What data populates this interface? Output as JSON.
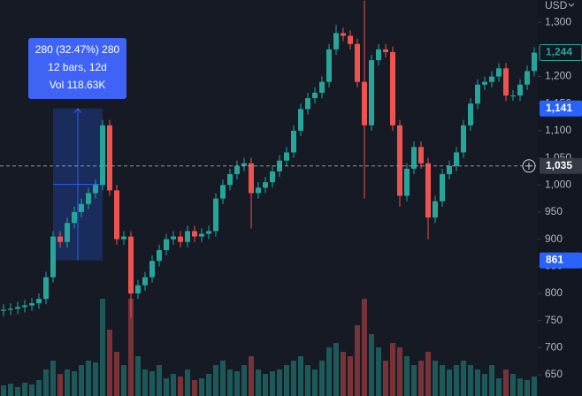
{
  "chart_data": {
    "type": "candlestick",
    "currency": "USD",
    "open": [
      768,
      770,
      772,
      775,
      778,
      782,
      790,
      830,
      905,
      895,
      930,
      950,
      965,
      985,
      1000,
      1110,
      990,
      900,
      905,
      800,
      815,
      830,
      860,
      880,
      900,
      905,
      895,
      915,
      905,
      910,
      915,
      975,
      1000,
      1020,
      1035,
      1040,
      985,
      995,
      1005,
      1025,
      1045,
      1060,
      1100,
      1140,
      1160,
      1170,
      1190,
      1250,
      1280,
      1275,
      1260,
      1190,
      1110,
      1230,
      1250,
      1245,
      1110,
      980,
      1030,
      1070,
      1040,
      940,
      970,
      1020,
      1035,
      1060,
      1110,
      1150,
      1185,
      1190,
      1200,
      1215,
      1165,
      1165,
      1185,
      1210
    ],
    "high": [
      780,
      782,
      785,
      788,
      792,
      800,
      840,
      915,
      915,
      940,
      960,
      975,
      995,
      1010,
      1120,
      1120,
      1000,
      915,
      915,
      825,
      840,
      870,
      890,
      910,
      915,
      915,
      925,
      925,
      920,
      925,
      985,
      1010,
      1030,
      1045,
      1050,
      1050,
      1005,
      1015,
      1035,
      1055,
      1070,
      1110,
      1150,
      1170,
      1180,
      1200,
      1260,
      1295,
      1290,
      1285,
      1270,
      1340,
      1240,
      1260,
      1260,
      1255,
      1120,
      1040,
      1080,
      1080,
      1050,
      980,
      1030,
      1045,
      1070,
      1120,
      1160,
      1195,
      1200,
      1210,
      1225,
      1225,
      1175,
      1195,
      1220,
      1254
    ],
    "low": [
      758,
      760,
      762,
      765,
      768,
      772,
      780,
      820,
      885,
      885,
      920,
      940,
      955,
      975,
      990,
      980,
      890,
      890,
      755,
      790,
      805,
      820,
      850,
      870,
      890,
      885,
      885,
      895,
      895,
      900,
      905,
      965,
      990,
      1010,
      1025,
      920,
      975,
      985,
      995,
      1015,
      1035,
      1050,
      1090,
      1130,
      1150,
      1160,
      1180,
      1240,
      1265,
      1250,
      1180,
      975,
      1100,
      1220,
      1235,
      1100,
      960,
      970,
      1020,
      1030,
      900,
      930,
      960,
      1010,
      1025,
      1050,
      1100,
      1140,
      1175,
      1180,
      1190,
      1155,
      1155,
      1155,
      1175,
      1200
    ],
    "close": [
      770,
      772,
      775,
      778,
      782,
      790,
      830,
      905,
      895,
      930,
      950,
      965,
      985,
      1000,
      1110,
      990,
      900,
      905,
      800,
      815,
      830,
      860,
      880,
      900,
      905,
      895,
      915,
      905,
      910,
      915,
      975,
      1000,
      1020,
      1035,
      1040,
      985,
      995,
      1005,
      1025,
      1045,
      1060,
      1100,
      1140,
      1160,
      1170,
      1190,
      1250,
      1280,
      1275,
      1260,
      1190,
      1110,
      1230,
      1250,
      1245,
      1110,
      980,
      1030,
      1070,
      1040,
      940,
      970,
      1020,
      1035,
      1060,
      1110,
      1150,
      1185,
      1190,
      1200,
      1215,
      1165,
      1165,
      1185,
      1210,
      1244
    ],
    "volume": [
      12,
      14,
      10,
      15,
      13,
      18,
      30,
      40,
      25,
      30,
      28,
      35,
      40,
      38,
      110,
      75,
      50,
      35,
      110,
      45,
      30,
      28,
      35,
      20,
      25,
      22,
      30,
      18,
      20,
      25,
      35,
      40,
      30,
      28,
      35,
      45,
      30,
      25,
      28,
      30,
      35,
      40,
      45,
      35,
      30,
      40,
      55,
      60,
      50,
      45,
      80,
      110,
      70,
      55,
      40,
      60,
      55,
      45,
      35,
      40,
      50,
      40,
      35,
      30,
      35,
      40,
      35,
      30,
      25,
      35,
      20,
      30,
      25,
      20,
      18,
      22
    ],
    "up_color": "#26a69a",
    "down_color": "#ef5350",
    "ylim": [
      611,
      1341
    ],
    "yticks": [
      650,
      700,
      750,
      800,
      850,
      900,
      950,
      {
        "value": 1000,
        "label": "1,000"
      },
      {
        "value": 1050,
        "label": "1,050"
      },
      {
        "value": 1100,
        "label": "1,100"
      },
      {
        "value": 1150,
        "label": "1,150"
      },
      {
        "value": 1200,
        "label": "1,200"
      },
      {
        "value": 1250,
        "label": "1,250"
      },
      {
        "value": 1300,
        "label": "1,300"
      }
    ],
    "last_price": {
      "value": 1244,
      "label": "1,244"
    },
    "crosshair": {
      "value": 1035,
      "label": "1,035"
    },
    "measure": {
      "high": {
        "value": 1141,
        "label": "1,141"
      },
      "low": 861,
      "lines": [
        "280 (32.47%) 280",
        "12 bars, 12d",
        "Vol 118.63K"
      ]
    }
  }
}
